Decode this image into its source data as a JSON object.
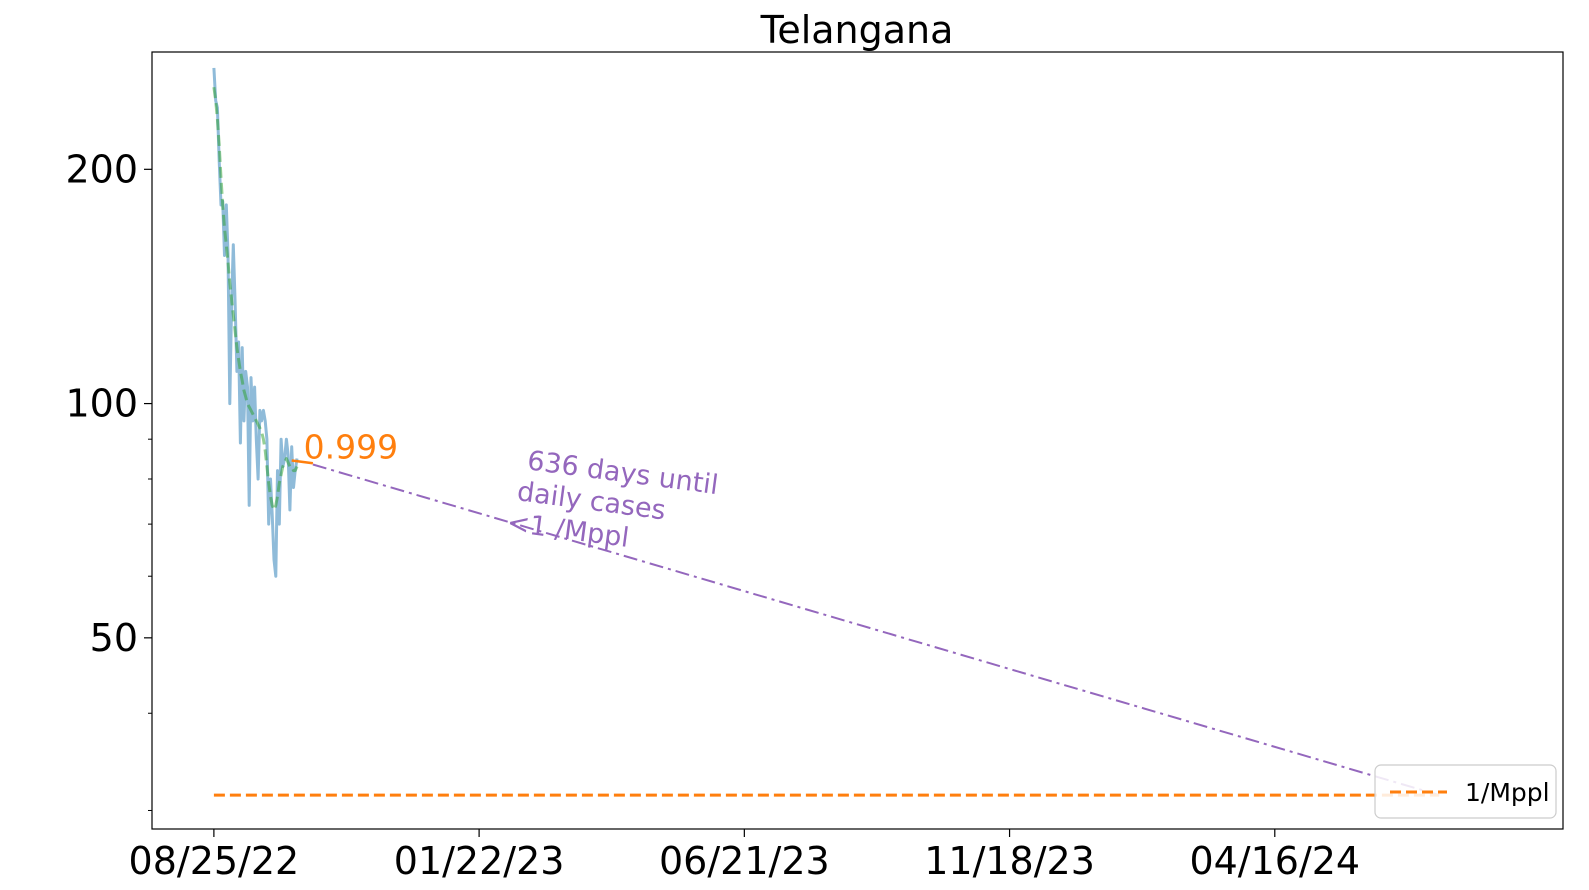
{
  "chart_data": {
    "type": "line",
    "title": "Telangana",
    "xlabel": "",
    "ylabel": "",
    "yscale": "log",
    "xlim": [
      "2022-07-21",
      "2024-09-26"
    ],
    "ylim": [
      28.4,
      283
    ],
    "x_ticks": [
      "08/25/22",
      "01/22/23",
      "06/21/23",
      "11/18/23",
      "04/16/24"
    ],
    "y_ticks": [
      50,
      100,
      200
    ],
    "y_minor_ticks": [
      30,
      40,
      60,
      70,
      80,
      90,
      300
    ],
    "grid": false,
    "legend": {
      "position": "bottom-right",
      "entries": [
        {
          "label": "1/Mppl",
          "color": "#ff7f0e",
          "style": "dashed"
        }
      ]
    },
    "series": [
      {
        "role": "daily-cases",
        "color": "#1f77b4",
        "style": "solid",
        "start_date": "2022-08-25",
        "values": [
          270,
          245,
          240,
          205,
          180,
          182,
          155,
          180,
          156,
          100,
          135,
          160,
          135,
          110,
          120,
          89,
          118,
          95,
          110,
          105,
          74,
          108,
          95,
          105,
          90,
          80,
          98,
          95,
          98,
          95,
          90,
          70,
          80,
          72,
          63,
          60,
          82,
          70,
          90,
          83,
          85,
          90,
          86,
          73,
          88,
          78,
          82,
          85
        ]
      },
      {
        "role": "smoothed",
        "color": "#2ca02c",
        "style": "dashed",
        "start_date": "2022-08-25",
        "values": [
          255,
          245,
          232,
          215,
          195,
          180,
          168,
          160,
          152,
          143,
          136,
          130,
          124,
          118,
          114,
          110,
          107,
          104,
          102,
          100,
          99,
          98,
          97,
          96,
          95,
          94,
          93,
          92,
          90,
          87,
          83,
          79,
          76,
          74,
          73,
          74,
          76,
          79,
          81,
          83,
          84,
          85,
          84,
          83,
          83,
          82,
          82,
          83
        ]
      },
      {
        "role": "recent-trend",
        "color": "#ff7f0e",
        "style": "solid",
        "x": [
          "2022-10-08",
          "2022-10-20"
        ],
        "values": [
          84.5,
          83.8
        ]
      },
      {
        "role": "projection",
        "color": "#9467bd",
        "style": "dashdot",
        "x": [
          "2022-10-20",
          "2024-07-18"
        ],
        "values": [
          83.5,
          31.4
        ]
      },
      {
        "role": "threshold",
        "name": "1/Mppl",
        "color": "#ff7f0e",
        "style": "dashed",
        "x": [
          "2022-08-25",
          "2024-07-18"
        ],
        "values": [
          31.4,
          31.4
        ]
      }
    ],
    "annotations": [
      {
        "text": "0.999",
        "color": "#ff7f0e",
        "x": "2022-10-08",
        "y": 84.5
      },
      {
        "text": "636 days until\ndaily cases\n<1 /Mppl",
        "color": "#9467bd",
        "x": "2023-02-20",
        "y": 70,
        "rotation_deg": 7.5
      }
    ]
  }
}
